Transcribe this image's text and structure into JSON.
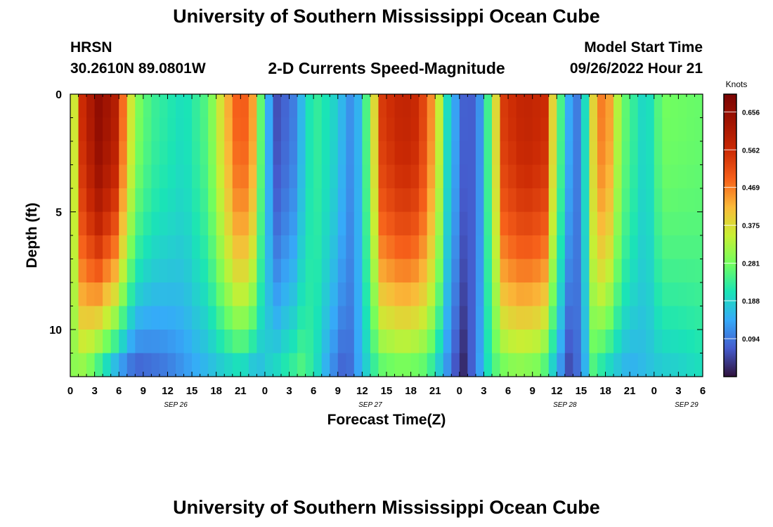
{
  "page": {
    "title_top": "University of Southern Mississippi Ocean Cube",
    "title_bottom": "University of Southern Mississippi Ocean Cube",
    "station": "HRSN",
    "coords": "30.2610N  89.0801W",
    "product": "2-D Currents Speed-Magnitude",
    "model_label": "Model Start Time",
    "model_time": "09/26/2022 Hour 21"
  },
  "chart_data": {
    "type": "heatmap",
    "title": "2-D Currents Speed-Magnitude",
    "xlabel": "Forecast Time(Z)",
    "ylabel": "Depth (ft)",
    "x_tick_labels": [
      "0",
      "3",
      "6",
      "9",
      "12",
      "15",
      "18",
      "21",
      "0",
      "3",
      "6",
      "9",
      "12",
      "15",
      "18",
      "21",
      "0",
      "3",
      "6",
      "9",
      "12",
      "15",
      "18",
      "21",
      "0",
      "3",
      "6"
    ],
    "date_labels": [
      {
        "label": "SEP 26",
        "hour": 13
      },
      {
        "label": "SEP 27",
        "hour": 37
      },
      {
        "label": "SEP 28",
        "hour": 61
      },
      {
        "label": "SEP 29",
        "hour": 76
      }
    ],
    "x_range_hours": [
      0,
      78
    ],
    "y_ticks": [
      "0",
      "5",
      "10"
    ],
    "y_range_ft": [
      0,
      12
    ],
    "depth_levels_ft": [
      0.5,
      1.5,
      2.5,
      3.5,
      4.5,
      5.5,
      6.5,
      7.5,
      8.5,
      9.5,
      10.5,
      11.5
    ],
    "colorbar": {
      "unit": "Knots",
      "min": 0,
      "max": 0.7,
      "labels": [
        "0.656",
        "0.562",
        "0.469",
        "0.375",
        "0.281",
        "0.188",
        "0.094"
      ],
      "label_values": [
        0.656,
        0.562,
        0.469,
        0.375,
        0.281,
        0.188,
        0.094
      ]
    },
    "speed_keypoints": {
      "surface": [
        [
          0,
          0.22
        ],
        [
          0.5,
          0.36
        ],
        [
          1.5,
          0.56
        ],
        [
          3.5,
          0.66
        ],
        [
          5.5,
          0.6
        ],
        [
          7,
          0.42
        ],
        [
          8,
          0.3
        ],
        [
          10,
          0.24
        ],
        [
          14,
          0.2
        ],
        [
          17,
          0.26
        ],
        [
          19,
          0.4
        ],
        [
          21,
          0.52
        ],
        [
          22.5,
          0.44
        ],
        [
          24,
          0.18
        ],
        [
          25.5,
          0.06
        ],
        [
          27.5,
          0.1
        ],
        [
          30,
          0.24
        ],
        [
          32.5,
          0.19
        ],
        [
          35,
          0.1
        ],
        [
          37,
          0.3
        ],
        [
          38.5,
          0.54
        ],
        [
          41,
          0.58
        ],
        [
          43,
          0.56
        ],
        [
          45,
          0.42
        ],
        [
          46.5,
          0.2
        ],
        [
          48,
          0.1
        ],
        [
          49,
          0.05
        ],
        [
          50.5,
          0.12
        ],
        [
          52,
          0.3
        ],
        [
          53.5,
          0.54
        ],
        [
          56,
          0.58
        ],
        [
          58.5,
          0.56
        ],
        [
          60,
          0.3
        ],
        [
          61.5,
          0.14
        ],
        [
          62.5,
          0.1
        ],
        [
          63.5,
          0.2
        ],
        [
          65,
          0.48
        ],
        [
          66.5,
          0.44
        ],
        [
          68,
          0.28
        ],
        [
          71,
          0.18
        ],
        [
          73,
          0.28
        ],
        [
          78,
          0.27
        ]
      ],
      "bottom": [
        [
          0,
          0.3
        ],
        [
          2,
          0.28
        ],
        [
          4,
          0.18
        ],
        [
          6,
          0.1
        ],
        [
          8,
          0.06
        ],
        [
          12,
          0.09
        ],
        [
          15,
          0.13
        ],
        [
          18,
          0.16
        ],
        [
          21,
          0.18
        ],
        [
          23,
          0.14
        ],
        [
          24,
          0.18
        ],
        [
          26,
          0.22
        ],
        [
          28.5,
          0.26
        ],
        [
          30,
          0.22
        ],
        [
          32,
          0.12
        ],
        [
          34,
          0.06
        ],
        [
          36,
          0.16
        ],
        [
          38,
          0.24
        ],
        [
          41,
          0.26
        ],
        [
          44,
          0.24
        ],
        [
          46,
          0.14
        ],
        [
          47.5,
          0.06
        ],
        [
          48.5,
          0.02
        ],
        [
          50,
          0.1
        ],
        [
          52,
          0.24
        ],
        [
          55,
          0.28
        ],
        [
          58,
          0.26
        ],
        [
          60,
          0.14
        ],
        [
          61.5,
          0.05
        ],
        [
          63,
          0.1
        ],
        [
          64.5,
          0.24
        ],
        [
          66,
          0.18
        ],
        [
          69,
          0.14
        ],
        [
          72,
          0.17
        ],
        [
          75,
          0.18
        ],
        [
          78,
          0.2
        ]
      ]
    },
    "grid": false
  }
}
